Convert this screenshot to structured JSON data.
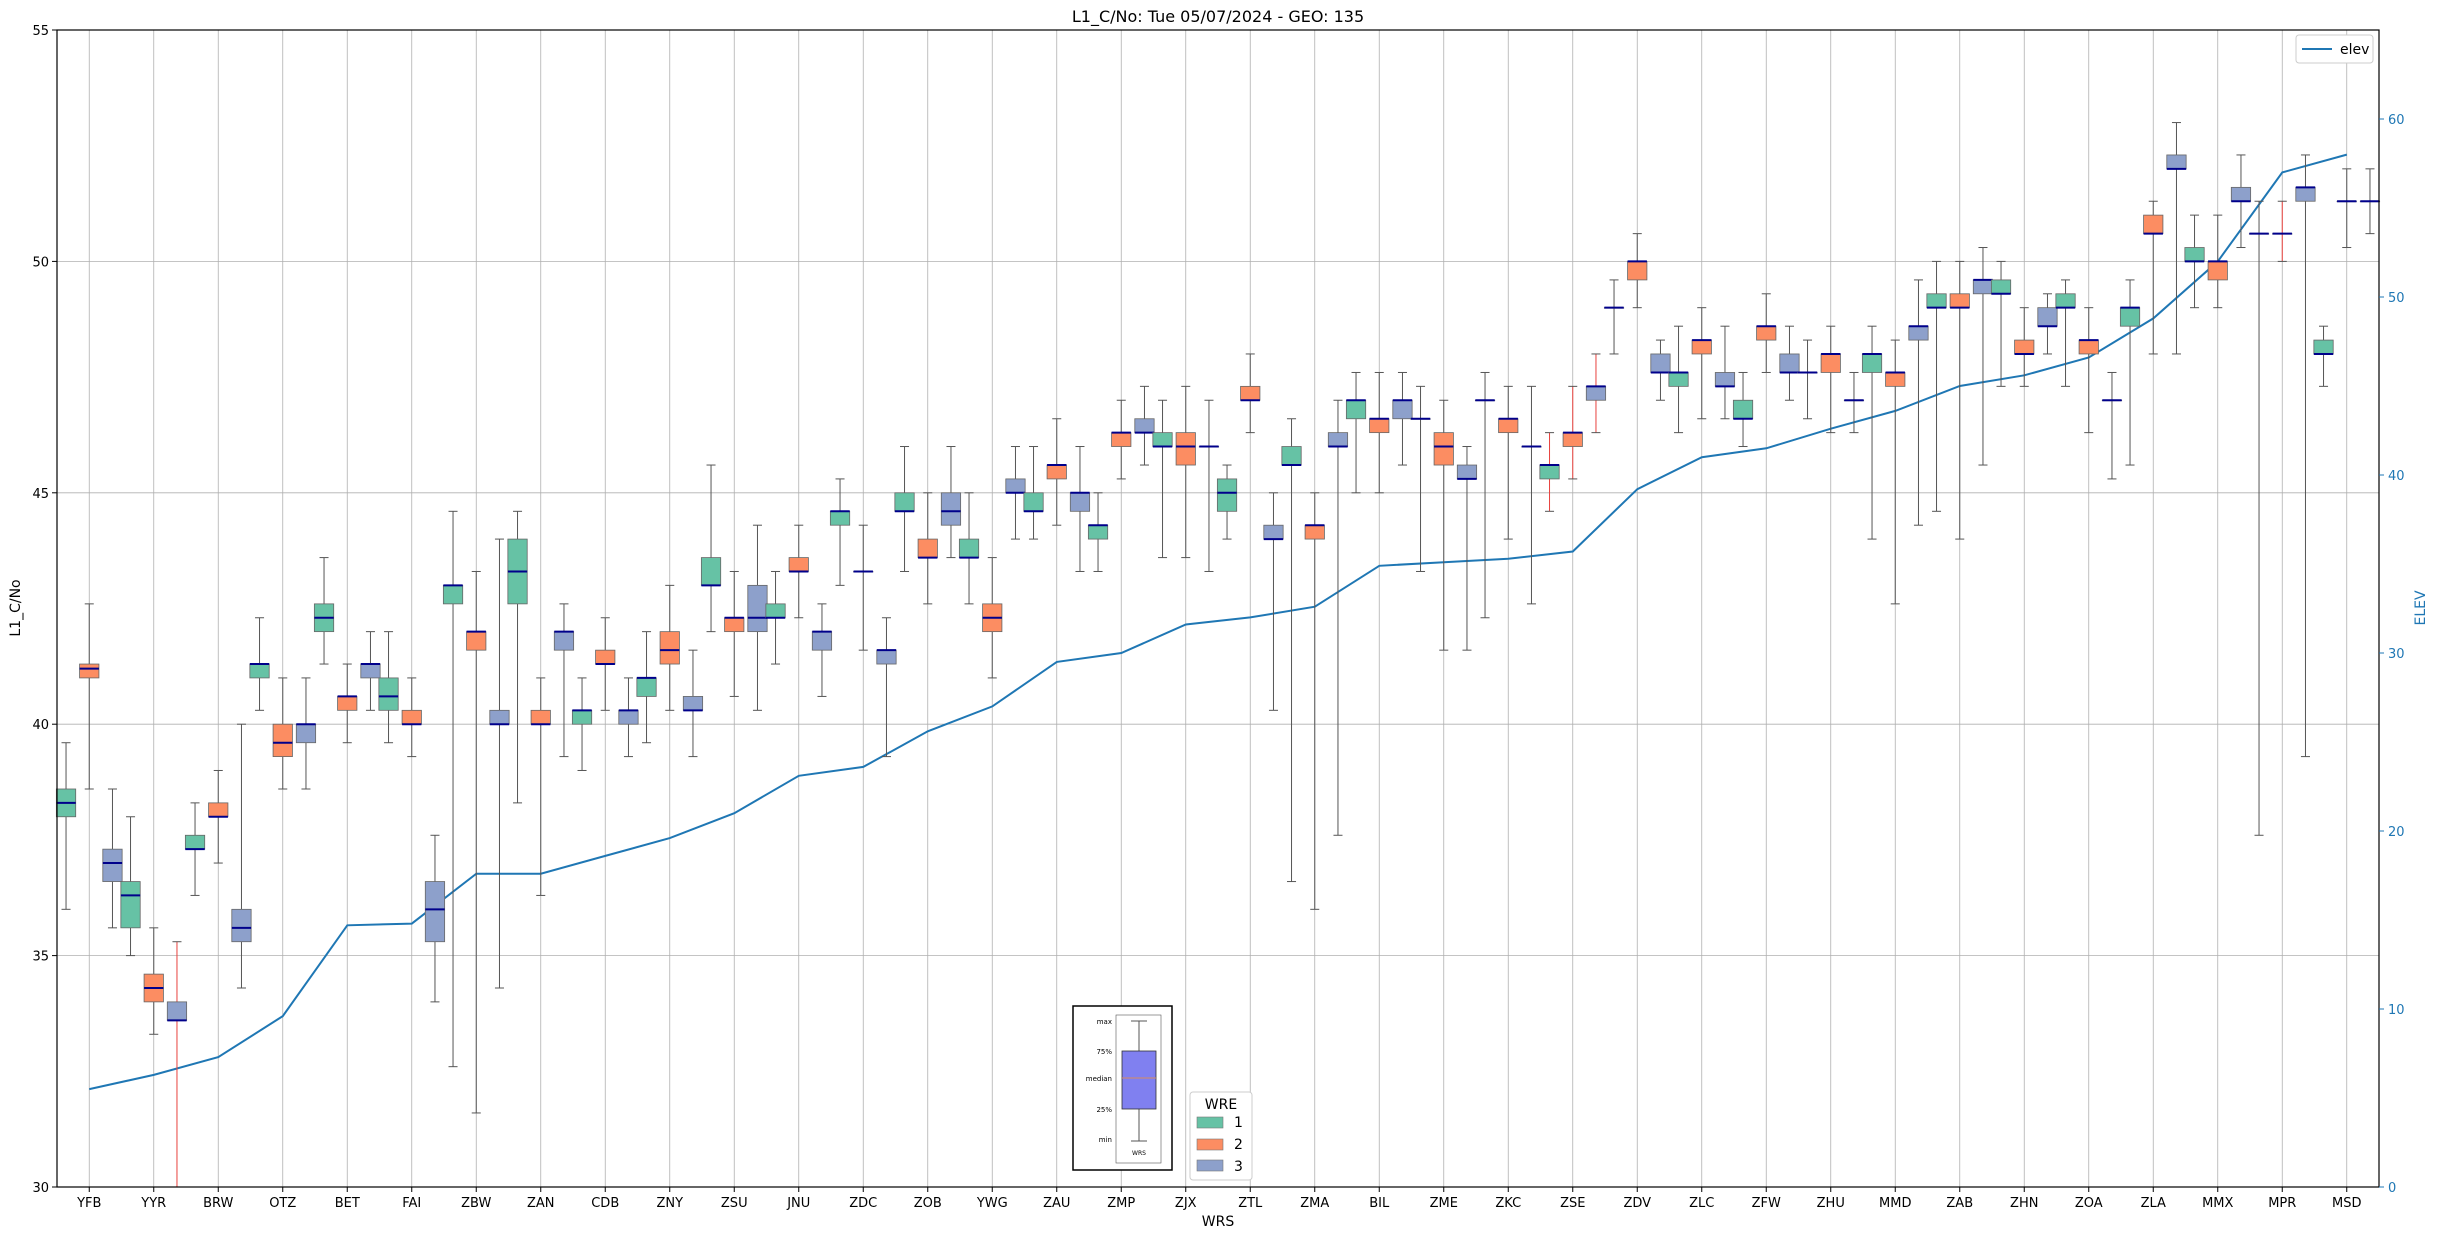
{
  "chart_data": {
    "type": "box",
    "title": "L1_C/No: Tue 05/07/2024 - GEO: 135",
    "xlabel": "WRS",
    "ylabel": "L1_C/No",
    "y2label": "ELEV",
    "ylim": [
      30,
      55
    ],
    "y2lim": [
      0,
      65
    ],
    "yticks": [
      "30",
      "35",
      "40",
      "45",
      "50",
      "55"
    ],
    "y2ticks": [
      "0",
      "10",
      "20",
      "30",
      "40",
      "50",
      "60"
    ],
    "grid": true,
    "categories": [
      "YFB",
      "YYR",
      "BRW",
      "OTZ",
      "BET",
      "FAI",
      "ZBW",
      "ZAN",
      "CDB",
      "ZNY",
      "ZSU",
      "JNU",
      "ZDC",
      "ZOB",
      "YWG",
      "ZAU",
      "ZMP",
      "ZJX",
      "ZTL",
      "ZMA",
      "BIL",
      "ZME",
      "ZKC",
      "ZSE",
      "ZDV",
      "ZLC",
      "ZFW",
      "ZHU",
      "MMD",
      "ZAB",
      "ZHN",
      "ZOA",
      "ZLA",
      "MMX",
      "MPR",
      "MSD"
    ],
    "wre_colors": {
      "1": "#66c2a5",
      "2": "#fc8d62",
      "3": "#8da0cb"
    },
    "median_color": "#00008b",
    "highlight_whisker_color": "#e8413c",
    "legend_wre": {
      "title": "WRE",
      "entries": [
        "1",
        "2",
        "3"
      ],
      "placement": "bottom-center"
    },
    "legend_elev": {
      "entries": [
        "elev"
      ],
      "placement": "top-right"
    },
    "elev_color": "#1f77b4",
    "boxes": [
      {
        "wrs": "YFB",
        "wre": 1,
        "min": 36.0,
        "q1": 38.0,
        "median": 38.3,
        "q3": 38.6,
        "max": 39.6
      },
      {
        "wrs": "YFB",
        "wre": 2,
        "min": 38.6,
        "q1": 41.0,
        "median": 41.2,
        "q3": 41.3,
        "max": 42.6
      },
      {
        "wrs": "YFB",
        "wre": 3,
        "min": 35.6,
        "q1": 36.6,
        "median": 37.0,
        "q3": 37.3,
        "max": 38.6
      },
      {
        "wrs": "YYR",
        "wre": 1,
        "min": 35.0,
        "q1": 35.6,
        "median": 36.3,
        "q3": 36.6,
        "max": 38.0
      },
      {
        "wrs": "YYR",
        "wre": 2,
        "min": 33.3,
        "q1": 34.0,
        "median": 34.3,
        "q3": 34.6,
        "max": 35.6
      },
      {
        "wrs": "YYR",
        "wre": 3,
        "min": 30.0,
        "q1": 33.6,
        "median": 33.6,
        "q3": 34.0,
        "max": 35.3,
        "highlight": true
      },
      {
        "wrs": "BRW",
        "wre": 1,
        "min": 36.3,
        "q1": 37.3,
        "median": 37.3,
        "q3": 37.6,
        "max": 38.3
      },
      {
        "wrs": "BRW",
        "wre": 2,
        "min": 37.0,
        "q1": 38.0,
        "median": 38.0,
        "q3": 38.3,
        "max": 39.0
      },
      {
        "wrs": "BRW",
        "wre": 3,
        "min": 34.3,
        "q1": 35.3,
        "median": 35.6,
        "q3": 36.0,
        "max": 40.0
      },
      {
        "wrs": "OTZ",
        "wre": 1,
        "min": 40.3,
        "q1": 41.0,
        "median": 41.3,
        "q3": 41.3,
        "max": 42.3
      },
      {
        "wrs": "OTZ",
        "wre": 2,
        "min": 38.6,
        "q1": 39.3,
        "median": 39.6,
        "q3": 40.0,
        "max": 41.0
      },
      {
        "wrs": "OTZ",
        "wre": 3,
        "min": 38.6,
        "q1": 39.6,
        "median": 40.0,
        "q3": 40.0,
        "max": 41.0
      },
      {
        "wrs": "BET",
        "wre": 1,
        "min": 41.3,
        "q1": 42.0,
        "median": 42.3,
        "q3": 42.6,
        "max": 43.6
      },
      {
        "wrs": "BET",
        "wre": 2,
        "min": 39.6,
        "q1": 40.3,
        "median": 40.6,
        "q3": 40.6,
        "max": 41.3
      },
      {
        "wrs": "BET",
        "wre": 3,
        "min": 40.3,
        "q1": 41.0,
        "median": 41.3,
        "q3": 41.3,
        "max": 42.0
      },
      {
        "wrs": "FAI",
        "wre": 1,
        "min": 39.6,
        "q1": 40.3,
        "median": 40.6,
        "q3": 41.0,
        "max": 42.0
      },
      {
        "wrs": "FAI",
        "wre": 2,
        "min": 39.3,
        "q1": 40.0,
        "median": 40.0,
        "q3": 40.3,
        "max": 41.0
      },
      {
        "wrs": "FAI",
        "wre": 3,
        "min": 34.0,
        "q1": 35.3,
        "median": 36.0,
        "q3": 36.6,
        "max": 37.6
      },
      {
        "wrs": "ZBW",
        "wre": 1,
        "min": 32.6,
        "q1": 42.6,
        "median": 43.0,
        "q3": 43.0,
        "max": 44.6
      },
      {
        "wrs": "ZBW",
        "wre": 2,
        "min": 31.6,
        "q1": 41.6,
        "median": 42.0,
        "q3": 42.0,
        "max": 43.3
      },
      {
        "wrs": "ZBW",
        "wre": 3,
        "min": 34.3,
        "q1": 40.0,
        "median": 40.0,
        "q3": 40.3,
        "max": 44.0
      },
      {
        "wrs": "ZAN",
        "wre": 1,
        "min": 38.3,
        "q1": 42.6,
        "median": 43.3,
        "q3": 44.0,
        "max": 44.6
      },
      {
        "wrs": "ZAN",
        "wre": 2,
        "min": 36.3,
        "q1": 40.0,
        "median": 40.0,
        "q3": 40.3,
        "max": 41.0
      },
      {
        "wrs": "ZAN",
        "wre": 3,
        "min": 39.3,
        "q1": 41.6,
        "median": 42.0,
        "q3": 42.0,
        "max": 42.6
      },
      {
        "wrs": "CDB",
        "wre": 1,
        "min": 39.0,
        "q1": 40.0,
        "median": 40.3,
        "q3": 40.3,
        "max": 41.0
      },
      {
        "wrs": "CDB",
        "wre": 2,
        "min": 40.3,
        "q1": 41.3,
        "median": 41.3,
        "q3": 41.6,
        "max": 42.3
      },
      {
        "wrs": "CDB",
        "wre": 3,
        "min": 39.3,
        "q1": 40.0,
        "median": 40.3,
        "q3": 40.3,
        "max": 41.0
      },
      {
        "wrs": "ZNY",
        "wre": 1,
        "min": 39.6,
        "q1": 40.6,
        "median": 41.0,
        "q3": 41.0,
        "max": 42.0
      },
      {
        "wrs": "ZNY",
        "wre": 2,
        "min": 40.3,
        "q1": 41.3,
        "median": 41.6,
        "q3": 42.0,
        "max": 43.0
      },
      {
        "wrs": "ZNY",
        "wre": 3,
        "min": 39.3,
        "q1": 40.3,
        "median": 40.3,
        "q3": 40.6,
        "max": 41.6
      },
      {
        "wrs": "ZSU",
        "wre": 1,
        "min": 42.0,
        "q1": 43.0,
        "median": 43.0,
        "q3": 43.6,
        "max": 45.6
      },
      {
        "wrs": "ZSU",
        "wre": 2,
        "min": 40.6,
        "q1": 42.0,
        "median": 42.3,
        "q3": 42.3,
        "max": 43.3
      },
      {
        "wrs": "ZSU",
        "wre": 3,
        "min": 40.3,
        "q1": 42.0,
        "median": 42.3,
        "q3": 43.0,
        "max": 44.3
      },
      {
        "wrs": "JNU",
        "wre": 1,
        "min": 41.3,
        "q1": 42.3,
        "median": 42.3,
        "q3": 42.6,
        "max": 43.3
      },
      {
        "wrs": "JNU",
        "wre": 2,
        "min": 42.3,
        "q1": 43.3,
        "median": 43.3,
        "q3": 43.6,
        "max": 44.3
      },
      {
        "wrs": "JNU",
        "wre": 3,
        "min": 40.6,
        "q1": 41.6,
        "median": 42.0,
        "q3": 42.0,
        "max": 42.6
      },
      {
        "wrs": "ZDC",
        "wre": 1,
        "min": 43.0,
        "q1": 44.3,
        "median": 44.6,
        "q3": 44.6,
        "max": 45.3
      },
      {
        "wrs": "ZDC",
        "wre": 2,
        "min": 41.6,
        "q1": 43.3,
        "median": 43.3,
        "q3": 43.3,
        "max": 44.3
      },
      {
        "wrs": "ZDC",
        "wre": 3,
        "min": 39.3,
        "q1": 41.3,
        "median": 41.6,
        "q3": 41.6,
        "max": 42.3
      },
      {
        "wrs": "ZOB",
        "wre": 1,
        "min": 43.3,
        "q1": 44.6,
        "median": 44.6,
        "q3": 45.0,
        "max": 46.0
      },
      {
        "wrs": "ZOB",
        "wre": 2,
        "min": 42.6,
        "q1": 43.6,
        "median": 43.6,
        "q3": 44.0,
        "max": 45.0
      },
      {
        "wrs": "ZOB",
        "wre": 3,
        "min": 43.6,
        "q1": 44.3,
        "median": 44.6,
        "q3": 45.0,
        "max": 46.0
      },
      {
        "wrs": "YWG",
        "wre": 1,
        "min": 42.6,
        "q1": 43.6,
        "median": 43.6,
        "q3": 44.0,
        "max": 45.0
      },
      {
        "wrs": "YWG",
        "wre": 2,
        "min": 41.0,
        "q1": 42.0,
        "median": 42.3,
        "q3": 42.6,
        "max": 43.6
      },
      {
        "wrs": "YWG",
        "wre": 3,
        "min": 44.0,
        "q1": 45.0,
        "median": 45.0,
        "q3": 45.3,
        "max": 46.0
      },
      {
        "wrs": "ZAU",
        "wre": 1,
        "min": 44.0,
        "q1": 44.6,
        "median": 44.6,
        "q3": 45.0,
        "max": 46.0
      },
      {
        "wrs": "ZAU",
        "wre": 2,
        "min": 44.3,
        "q1": 45.3,
        "median": 45.6,
        "q3": 45.6,
        "max": 46.6
      },
      {
        "wrs": "ZAU",
        "wre": 3,
        "min": 43.3,
        "q1": 44.6,
        "median": 45.0,
        "q3": 45.0,
        "max": 46.0
      },
      {
        "wrs": "ZMP",
        "wre": 1,
        "min": 43.3,
        "q1": 44.0,
        "median": 44.3,
        "q3": 44.3,
        "max": 45.0
      },
      {
        "wrs": "ZMP",
        "wre": 2,
        "min": 45.3,
        "q1": 46.0,
        "median": 46.3,
        "q3": 46.3,
        "max": 47.0
      },
      {
        "wrs": "ZMP",
        "wre": 3,
        "min": 45.6,
        "q1": 46.3,
        "median": 46.3,
        "q3": 46.6,
        "max": 47.3
      },
      {
        "wrs": "ZJX",
        "wre": 1,
        "min": 43.6,
        "q1": 46.0,
        "median": 46.0,
        "q3": 46.3,
        "max": 47.0
      },
      {
        "wrs": "ZJX",
        "wre": 2,
        "min": 43.6,
        "q1": 45.6,
        "median": 46.0,
        "q3": 46.3,
        "max": 47.3
      },
      {
        "wrs": "ZJX",
        "wre": 3,
        "min": 43.3,
        "q1": 46.0,
        "median": 46.0,
        "q3": 46.0,
        "max": 47.0
      },
      {
        "wrs": "ZTL",
        "wre": 1,
        "min": 44.0,
        "q1": 44.6,
        "median": 45.0,
        "q3": 45.3,
        "max": 45.6
      },
      {
        "wrs": "ZTL",
        "wre": 2,
        "min": 46.3,
        "q1": 47.0,
        "median": 47.0,
        "q3": 47.3,
        "max": 48.0
      },
      {
        "wrs": "ZTL",
        "wre": 3,
        "min": 40.3,
        "q1": 44.0,
        "median": 44.0,
        "q3": 44.3,
        "max": 45.0
      },
      {
        "wrs": "ZMA",
        "wre": 1,
        "min": 36.6,
        "q1": 45.6,
        "median": 45.6,
        "q3": 46.0,
        "max": 46.6
      },
      {
        "wrs": "ZMA",
        "wre": 2,
        "min": 36.0,
        "q1": 44.0,
        "median": 44.3,
        "q3": 44.3,
        "max": 45.0
      },
      {
        "wrs": "ZMA",
        "wre": 3,
        "min": 37.6,
        "q1": 46.0,
        "median": 46.0,
        "q3": 46.3,
        "max": 47.0
      },
      {
        "wrs": "BIL",
        "wre": 1,
        "min": 45.0,
        "q1": 46.6,
        "median": 47.0,
        "q3": 47.0,
        "max": 47.6
      },
      {
        "wrs": "BIL",
        "wre": 2,
        "min": 45.0,
        "q1": 46.3,
        "median": 46.6,
        "q3": 46.6,
        "max": 47.6
      },
      {
        "wrs": "BIL",
        "wre": 3,
        "min": 45.6,
        "q1": 46.6,
        "median": 47.0,
        "q3": 47.0,
        "max": 47.6
      },
      {
        "wrs": "ZME",
        "wre": 1,
        "min": 43.3,
        "q1": 46.6,
        "median": 46.6,
        "q3": 46.6,
        "max": 47.3
      },
      {
        "wrs": "ZME",
        "wre": 2,
        "min": 41.6,
        "q1": 45.6,
        "median": 46.0,
        "q3": 46.3,
        "max": 47.0
      },
      {
        "wrs": "ZME",
        "wre": 3,
        "min": 41.6,
        "q1": 45.3,
        "median": 45.3,
        "q3": 45.6,
        "max": 46.0
      },
      {
        "wrs": "ZKC",
        "wre": 1,
        "min": 42.3,
        "q1": 47.0,
        "median": 47.0,
        "q3": 47.0,
        "max": 47.6
      },
      {
        "wrs": "ZKC",
        "wre": 2,
        "min": 44.0,
        "q1": 46.3,
        "median": 46.6,
        "q3": 46.6,
        "max": 47.3
      },
      {
        "wrs": "ZKC",
        "wre": 3,
        "min": 42.6,
        "q1": 46.0,
        "median": 46.0,
        "q3": 46.0,
        "max": 47.3
      },
      {
        "wrs": "ZSE",
        "wre": 1,
        "min": 44.6,
        "q1": 45.3,
        "median": 45.6,
        "q3": 45.6,
        "max": 46.3,
        "highlight": true
      },
      {
        "wrs": "ZSE",
        "wre": 2,
        "min": 45.3,
        "q1": 46.0,
        "median": 46.3,
        "q3": 46.3,
        "max": 47.3,
        "highlight": true
      },
      {
        "wrs": "ZSE",
        "wre": 3,
        "min": 46.3,
        "q1": 47.0,
        "median": 47.3,
        "q3": 47.3,
        "max": 48.0,
        "highlight": true
      },
      {
        "wrs": "ZDV",
        "wre": 1,
        "min": 48.0,
        "q1": 49.0,
        "median": 49.0,
        "q3": 49.0,
        "max": 49.6
      },
      {
        "wrs": "ZDV",
        "wre": 2,
        "min": 49.0,
        "q1": 49.6,
        "median": 50.0,
        "q3": 50.0,
        "max": 50.6
      },
      {
        "wrs": "ZDV",
        "wre": 3,
        "min": 47.0,
        "q1": 47.6,
        "median": 47.6,
        "q3": 48.0,
        "max": 48.3
      },
      {
        "wrs": "ZLC",
        "wre": 1,
        "min": 46.3,
        "q1": 47.3,
        "median": 47.6,
        "q3": 47.6,
        "max": 48.6
      },
      {
        "wrs": "ZLC",
        "wre": 2,
        "min": 46.6,
        "q1": 48.0,
        "median": 48.3,
        "q3": 48.3,
        "max": 49.0
      },
      {
        "wrs": "ZLC",
        "wre": 3,
        "min": 46.6,
        "q1": 47.3,
        "median": 47.3,
        "q3": 47.6,
        "max": 48.6
      },
      {
        "wrs": "ZFW",
        "wre": 1,
        "min": 46.0,
        "q1": 46.6,
        "median": 46.6,
        "q3": 47.0,
        "max": 47.6
      },
      {
        "wrs": "ZFW",
        "wre": 2,
        "min": 47.6,
        "q1": 48.3,
        "median": 48.6,
        "q3": 48.6,
        "max": 49.3
      },
      {
        "wrs": "ZFW",
        "wre": 3,
        "min": 47.0,
        "q1": 47.6,
        "median": 47.6,
        "q3": 48.0,
        "max": 48.6
      },
      {
        "wrs": "ZHU",
        "wre": 1,
        "min": 46.6,
        "q1": 47.6,
        "median": 47.6,
        "q3": 47.6,
        "max": 48.3
      },
      {
        "wrs": "ZHU",
        "wre": 2,
        "min": 46.3,
        "q1": 47.6,
        "median": 48.0,
        "q3": 48.0,
        "max": 48.6
      },
      {
        "wrs": "ZHU",
        "wre": 3,
        "min": 46.3,
        "q1": 47.0,
        "median": 47.0,
        "q3": 47.0,
        "max": 47.6
      },
      {
        "wrs": "MMD",
        "wre": 1,
        "min": 44.0,
        "q1": 47.6,
        "median": 48.0,
        "q3": 48.0,
        "max": 48.6
      },
      {
        "wrs": "MMD",
        "wre": 2,
        "min": 42.6,
        "q1": 47.3,
        "median": 47.6,
        "q3": 47.6,
        "max": 48.3
      },
      {
        "wrs": "MMD",
        "wre": 3,
        "min": 44.3,
        "q1": 48.3,
        "median": 48.6,
        "q3": 48.6,
        "max": 49.6
      },
      {
        "wrs": "ZAB",
        "wre": 1,
        "min": 44.6,
        "q1": 49.0,
        "median": 49.0,
        "q3": 49.3,
        "max": 50.0
      },
      {
        "wrs": "ZAB",
        "wre": 2,
        "min": 44.0,
        "q1": 49.0,
        "median": 49.0,
        "q3": 49.3,
        "max": 50.0
      },
      {
        "wrs": "ZAB",
        "wre": 3,
        "min": 45.6,
        "q1": 49.3,
        "median": 49.6,
        "q3": 49.6,
        "max": 50.3
      },
      {
        "wrs": "ZHN",
        "wre": 1,
        "min": 47.3,
        "q1": 49.3,
        "median": 49.3,
        "q3": 49.6,
        "max": 50.0
      },
      {
        "wrs": "ZHN",
        "wre": 2,
        "min": 47.3,
        "q1": 48.0,
        "median": 48.0,
        "q3": 48.3,
        "max": 49.0
      },
      {
        "wrs": "ZHN",
        "wre": 3,
        "min": 48.0,
        "q1": 48.6,
        "median": 48.6,
        "q3": 49.0,
        "max": 49.3
      },
      {
        "wrs": "ZOA",
        "wre": 1,
        "min": 47.3,
        "q1": 49.0,
        "median": 49.0,
        "q3": 49.3,
        "max": 49.6
      },
      {
        "wrs": "ZOA",
        "wre": 2,
        "min": 46.3,
        "q1": 48.0,
        "median": 48.3,
        "q3": 48.3,
        "max": 49.0
      },
      {
        "wrs": "ZOA",
        "wre": 3,
        "min": 45.3,
        "q1": 47.0,
        "median": 47.0,
        "q3": 47.0,
        "max": 47.6
      },
      {
        "wrs": "ZLA",
        "wre": 1,
        "min": 45.6,
        "q1": 48.6,
        "median": 49.0,
        "q3": 49.0,
        "max": 49.6
      },
      {
        "wrs": "ZLA",
        "wre": 2,
        "min": 48.0,
        "q1": 50.6,
        "median": 50.6,
        "q3": 51.0,
        "max": 51.3
      },
      {
        "wrs": "ZLA",
        "wre": 3,
        "min": 48.0,
        "q1": 52.0,
        "median": 52.0,
        "q3": 52.3,
        "max": 53.0
      },
      {
        "wrs": "MMX",
        "wre": 1,
        "min": 49.0,
        "q1": 50.0,
        "median": 50.0,
        "q3": 50.3,
        "max": 51.0
      },
      {
        "wrs": "MMX",
        "wre": 2,
        "min": 49.0,
        "q1": 49.6,
        "median": 50.0,
        "q3": 50.0,
        "max": 51.0
      },
      {
        "wrs": "MMX",
        "wre": 3,
        "min": 50.3,
        "q1": 51.3,
        "median": 51.3,
        "q3": 51.6,
        "max": 52.3
      },
      {
        "wrs": "MPR",
        "wre": 1,
        "min": 37.6,
        "q1": 50.6,
        "median": 50.6,
        "q3": 50.6,
        "max": 51.3
      },
      {
        "wrs": "MPR",
        "wre": 2,
        "min": 50.0,
        "q1": 50.6,
        "median": 50.6,
        "q3": 50.6,
        "max": 51.3,
        "highlight": true
      },
      {
        "wrs": "MPR",
        "wre": 3,
        "min": 39.3,
        "q1": 51.3,
        "median": 51.6,
        "q3": 51.6,
        "max": 52.3
      },
      {
        "wrs": "MSD",
        "wre": 1,
        "min": 47.3,
        "q1": 48.0,
        "median": 48.0,
        "q3": 48.3,
        "max": 48.6
      },
      {
        "wrs": "MSD",
        "wre": 2,
        "min": 50.3,
        "q1": 51.3,
        "median": 51.3,
        "q3": 51.3,
        "max": 52.0
      },
      {
        "wrs": "MSD",
        "wre": 3,
        "min": 50.6,
        "q1": 51.3,
        "median": 51.3,
        "q3": 51.3,
        "max": 52.0
      }
    ],
    "elev": [
      5.5,
      6.3,
      7.3,
      9.6,
      14.7,
      14.8,
      17.6,
      17.6,
      18.6,
      19.6,
      21.0,
      23.1,
      23.6,
      25.6,
      27.0,
      29.5,
      30.0,
      31.6,
      32.0,
      32.6,
      34.9,
      35.1,
      35.3,
      35.7,
      39.2,
      41.0,
      41.5,
      42.6,
      43.6,
      45.0,
      45.6,
      46.6,
      48.8,
      52.0,
      57.0,
      58.0
    ],
    "inset_legend": {
      "labels": [
        "max",
        "75%",
        "median",
        "25%",
        "min"
      ],
      "xlabel": "WRS"
    }
  }
}
